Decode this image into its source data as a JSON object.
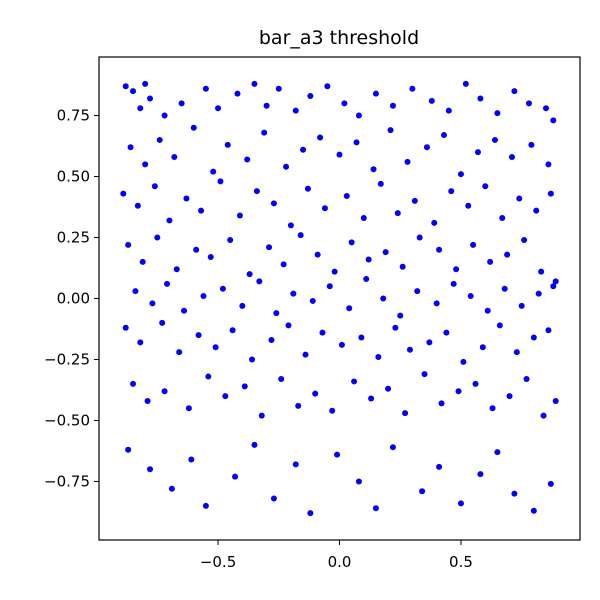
{
  "chart_data": {
    "type": "scatter",
    "title": "bar_a3 threshold",
    "xlabel": "",
    "ylabel": "",
    "xlim": [
      -0.99,
      0.99
    ],
    "ylim": [
      -0.99,
      0.99
    ],
    "xticks": [
      -0.5,
      0.0,
      0.5
    ],
    "xtick_labels": [
      "−0.5",
      "0.0",
      "0.5"
    ],
    "yticks": [
      -0.75,
      -0.5,
      -0.25,
      0.0,
      0.25,
      0.5,
      0.75
    ],
    "ytick_labels": [
      "−0.75",
      "−0.50",
      "−0.25",
      "0.00",
      "0.25",
      "0.50",
      "0.75"
    ],
    "grid": false,
    "legend": "none",
    "marker_color": "#0000ff",
    "series": [
      {
        "x": [
          -0.88,
          -0.85,
          -0.82,
          -0.8,
          -0.78,
          -0.72,
          -0.65,
          -0.55,
          -0.5,
          -0.42,
          -0.35,
          -0.3,
          -0.25,
          -0.18,
          -0.12,
          -0.05,
          0.02,
          0.08,
          0.15,
          0.22,
          0.3,
          0.38,
          0.45,
          0.52,
          0.58,
          0.65,
          0.72,
          0.78,
          0.85,
          0.88,
          -0.86,
          -0.8,
          -0.74,
          -0.68,
          -0.6,
          -0.52,
          -0.46,
          -0.38,
          -0.31,
          -0.22,
          -0.15,
          -0.08,
          0.0,
          0.07,
          0.14,
          0.21,
          0.28,
          0.36,
          0.43,
          0.5,
          0.57,
          0.64,
          0.71,
          0.79,
          0.86,
          -0.89,
          -0.83,
          -0.76,
          -0.7,
          -0.63,
          -0.57,
          -0.49,
          -0.41,
          -0.34,
          -0.27,
          -0.2,
          -0.13,
          -0.06,
          0.03,
          0.1,
          0.17,
          0.24,
          0.31,
          0.39,
          0.46,
          0.53,
          0.6,
          0.67,
          0.74,
          0.81,
          0.87,
          -0.87,
          -0.81,
          -0.75,
          -0.67,
          -0.59,
          -0.53,
          -0.45,
          -0.37,
          -0.29,
          -0.23,
          -0.16,
          -0.09,
          -0.02,
          0.05,
          0.12,
          0.19,
          0.26,
          0.33,
          0.41,
          0.48,
          0.55,
          0.62,
          0.69,
          0.76,
          0.83,
          0.89,
          -0.84,
          -0.77,
          -0.71,
          -0.64,
          -0.56,
          -0.48,
          -0.4,
          -0.33,
          -0.26,
          -0.19,
          -0.11,
          -0.04,
          0.04,
          0.11,
          0.18,
          0.25,
          0.32,
          0.4,
          0.47,
          0.54,
          0.61,
          0.68,
          0.75,
          0.82,
          0.88,
          -0.88,
          -0.82,
          -0.73,
          -0.66,
          -0.58,
          -0.51,
          -0.44,
          -0.36,
          -0.28,
          -0.21,
          -0.14,
          -0.07,
          0.01,
          0.09,
          0.16,
          0.23,
          0.29,
          0.37,
          0.44,
          0.51,
          0.59,
          0.66,
          0.73,
          0.8,
          0.86,
          -0.85,
          -0.79,
          -0.72,
          -0.62,
          -0.54,
          -0.47,
          -0.39,
          -0.32,
          -0.24,
          -0.17,
          -0.1,
          -0.03,
          0.06,
          0.13,
          0.2,
          0.27,
          0.35,
          0.42,
          0.49,
          0.56,
          0.63,
          0.7,
          0.77,
          0.84,
          0.89,
          -0.87,
          -0.78,
          -0.69,
          -0.61,
          -0.55,
          -0.43,
          -0.35,
          -0.27,
          -0.18,
          -0.12,
          -0.01,
          0.08,
          0.15,
          0.22,
          0.34,
          0.41,
          0.5,
          0.58,
          0.65,
          0.72,
          0.8,
          0.87
        ],
        "y": [
          0.87,
          0.85,
          0.78,
          0.88,
          0.82,
          0.75,
          0.8,
          0.86,
          0.78,
          0.84,
          0.88,
          0.79,
          0.86,
          0.77,
          0.83,
          0.87,
          0.8,
          0.75,
          0.84,
          0.79,
          0.86,
          0.81,
          0.77,
          0.88,
          0.82,
          0.76,
          0.85,
          0.8,
          0.78,
          0.73,
          0.62,
          0.55,
          0.65,
          0.58,
          0.7,
          0.52,
          0.63,
          0.57,
          0.68,
          0.54,
          0.61,
          0.66,
          0.59,
          0.64,
          0.53,
          0.69,
          0.56,
          0.62,
          0.67,
          0.51,
          0.6,
          0.65,
          0.58,
          0.63,
          0.55,
          0.43,
          0.38,
          0.46,
          0.32,
          0.41,
          0.36,
          0.48,
          0.34,
          0.44,
          0.39,
          0.3,
          0.45,
          0.37,
          0.42,
          0.33,
          0.47,
          0.35,
          0.4,
          0.31,
          0.44,
          0.38,
          0.46,
          0.33,
          0.41,
          0.36,
          0.43,
          0.22,
          0.15,
          0.25,
          0.12,
          0.2,
          0.17,
          0.24,
          0.1,
          0.21,
          0.14,
          0.26,
          0.18,
          0.11,
          0.23,
          0.16,
          0.19,
          0.13,
          0.25,
          0.2,
          0.12,
          0.22,
          0.15,
          0.18,
          0.24,
          0.11,
          0.07,
          0.03,
          -0.02,
          0.06,
          -0.05,
          0.01,
          0.04,
          -0.03,
          0.07,
          -0.06,
          0.02,
          -0.01,
          0.05,
          -0.04,
          0.08,
          0.0,
          -0.07,
          0.03,
          -0.02,
          0.06,
          0.01,
          -0.05,
          0.04,
          -0.03,
          0.02,
          0.05,
          -0.12,
          -0.18,
          -0.1,
          -0.22,
          -0.15,
          -0.2,
          -0.13,
          -0.25,
          -0.17,
          -0.11,
          -0.23,
          -0.14,
          -0.19,
          -0.16,
          -0.24,
          -0.12,
          -0.21,
          -0.18,
          -0.14,
          -0.26,
          -0.2,
          -0.11,
          -0.22,
          -0.16,
          -0.13,
          -0.35,
          -0.42,
          -0.38,
          -0.45,
          -0.32,
          -0.4,
          -0.36,
          -0.48,
          -0.33,
          -0.44,
          -0.39,
          -0.46,
          -0.34,
          -0.41,
          -0.37,
          -0.47,
          -0.31,
          -0.43,
          -0.38,
          -0.35,
          -0.45,
          -0.4,
          -0.33,
          -0.48,
          -0.42,
          -0.62,
          -0.7,
          -0.78,
          -0.66,
          -0.85,
          -0.73,
          -0.6,
          -0.82,
          -0.68,
          -0.88,
          -0.64,
          -0.75,
          -0.86,
          -0.61,
          -0.79,
          -0.69,
          -0.84,
          -0.72,
          -0.63,
          -0.8,
          -0.87,
          -0.76
        ]
      }
    ]
  }
}
